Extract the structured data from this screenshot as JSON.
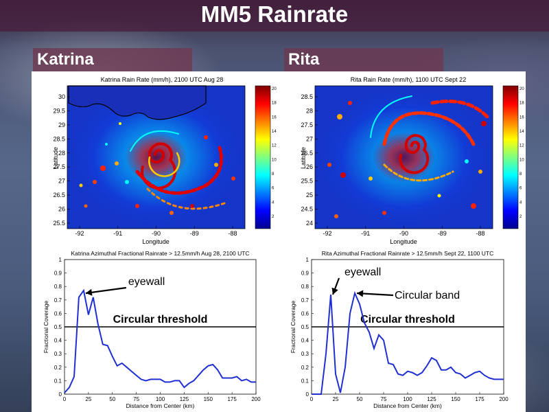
{
  "slide": {
    "title": "MM5 Rainrate",
    "left_label": "Katrina",
    "right_label": "Rita"
  },
  "colorbar": {
    "ticks": [
      "20",
      "18",
      "16",
      "14",
      "12",
      "10",
      "8",
      "6",
      "4",
      "2"
    ]
  },
  "maps": [
    {
      "title": "Katrina Rain Rate (mm/h), 2100 UTC Aug 28",
      "xlabel": "Longitude",
      "ylabel": "Latitude",
      "xticks": [
        "-92",
        "-91",
        "-90",
        "-89",
        "-88"
      ],
      "yticks": [
        "30",
        "29.5",
        "29",
        "28.5",
        "28",
        "27.5",
        "27",
        "26.5",
        "26",
        "25.5"
      ]
    },
    {
      "title": "Rita Rain Rate (mm/h), 1100 UTC Sept 22",
      "xlabel": "Longitude",
      "ylabel": "Latitude",
      "xticks": [
        "-92",
        "-91",
        "-90",
        "-89",
        "-88"
      ],
      "yticks": [
        "28.5",
        "28",
        "27.5",
        "27",
        "26.5",
        "26",
        "25.5",
        "25",
        "24.5",
        "24"
      ]
    }
  ],
  "chart_data": [
    {
      "type": "line",
      "title": "Katrina Azimuthal Fractional Rainrate > 12.5mm/h Aug 28, 2100 UTC",
      "xlabel": "Distance from Center (km)",
      "ylabel": "Fractional Coverage",
      "xlim": [
        0,
        200
      ],
      "ylim": [
        0,
        1
      ],
      "xticks": [
        "0",
        "25",
        "50",
        "75",
        "100",
        "125",
        "150",
        "175",
        "200"
      ],
      "yticks": [
        "0",
        "0.1",
        "0.2",
        "0.3",
        "0.4",
        "0.5",
        "0.6",
        "0.7",
        "0.8",
        "0.9",
        "1"
      ],
      "threshold": 0.5,
      "threshold_label": "Circular threshold",
      "annotations": [
        {
          "text": "eyewall",
          "x": 20,
          "y": 0.75
        }
      ],
      "series": [
        {
          "name": "Katrina",
          "x": [
            0,
            5,
            10,
            15,
            20,
            25,
            30,
            35,
            40,
            45,
            50,
            55,
            60,
            65,
            70,
            75,
            80,
            85,
            90,
            95,
            100,
            105,
            110,
            115,
            120,
            125,
            130,
            135,
            140,
            145,
            150,
            155,
            160,
            165,
            170,
            175,
            180,
            185,
            190,
            195,
            200
          ],
          "y": [
            0.01,
            0.05,
            0.13,
            0.72,
            0.77,
            0.59,
            0.72,
            0.52,
            0.37,
            0.36,
            0.28,
            0.21,
            0.23,
            0.2,
            0.17,
            0.14,
            0.11,
            0.1,
            0.11,
            0.11,
            0.11,
            0.09,
            0.09,
            0.1,
            0.1,
            0.05,
            0.08,
            0.1,
            0.14,
            0.18,
            0.21,
            0.22,
            0.18,
            0.12,
            0.12,
            0.12,
            0.13,
            0.1,
            0.11,
            0.09,
            0.09
          ]
        }
      ]
    },
    {
      "type": "line",
      "title": "Rita Azimuthal Fractional Rainrate > 12.5mm/h Sept 22, 1100 UTC",
      "xlabel": "Distance from Center (km)",
      "ylabel": "Fractional Coverage",
      "xlim": [
        0,
        200
      ],
      "ylim": [
        0,
        1
      ],
      "xticks": [
        "0",
        "25",
        "50",
        "75",
        "100",
        "125",
        "150",
        "175",
        "200"
      ],
      "yticks": [
        "0",
        "0.1",
        "0.2",
        "0.3",
        "0.4",
        "0.5",
        "0.6",
        "0.7",
        "0.8",
        "0.9",
        "1"
      ],
      "threshold": 0.5,
      "threshold_label": "Circular threshold",
      "annotations": [
        {
          "text": "eyewall",
          "x": 20,
          "y": 0.74
        },
        {
          "text": "Circular band",
          "x": 45,
          "y": 0.75
        }
      ],
      "series": [
        {
          "name": "Rita",
          "x": [
            0,
            5,
            10,
            15,
            20,
            25,
            30,
            35,
            40,
            45,
            50,
            55,
            60,
            65,
            70,
            75,
            80,
            85,
            90,
            95,
            100,
            105,
            110,
            115,
            120,
            125,
            130,
            135,
            140,
            145,
            150,
            155,
            160,
            165,
            170,
            175,
            180,
            185,
            190,
            195,
            200
          ],
          "y": [
            0.0,
            0.0,
            0.0,
            0.3,
            0.74,
            0.15,
            0.01,
            0.2,
            0.6,
            0.75,
            0.67,
            0.53,
            0.46,
            0.34,
            0.44,
            0.4,
            0.23,
            0.22,
            0.15,
            0.14,
            0.17,
            0.16,
            0.14,
            0.16,
            0.21,
            0.27,
            0.25,
            0.18,
            0.18,
            0.2,
            0.16,
            0.15,
            0.12,
            0.14,
            0.16,
            0.17,
            0.14,
            0.12,
            0.11,
            0.11,
            0.11
          ]
        }
      ]
    }
  ]
}
